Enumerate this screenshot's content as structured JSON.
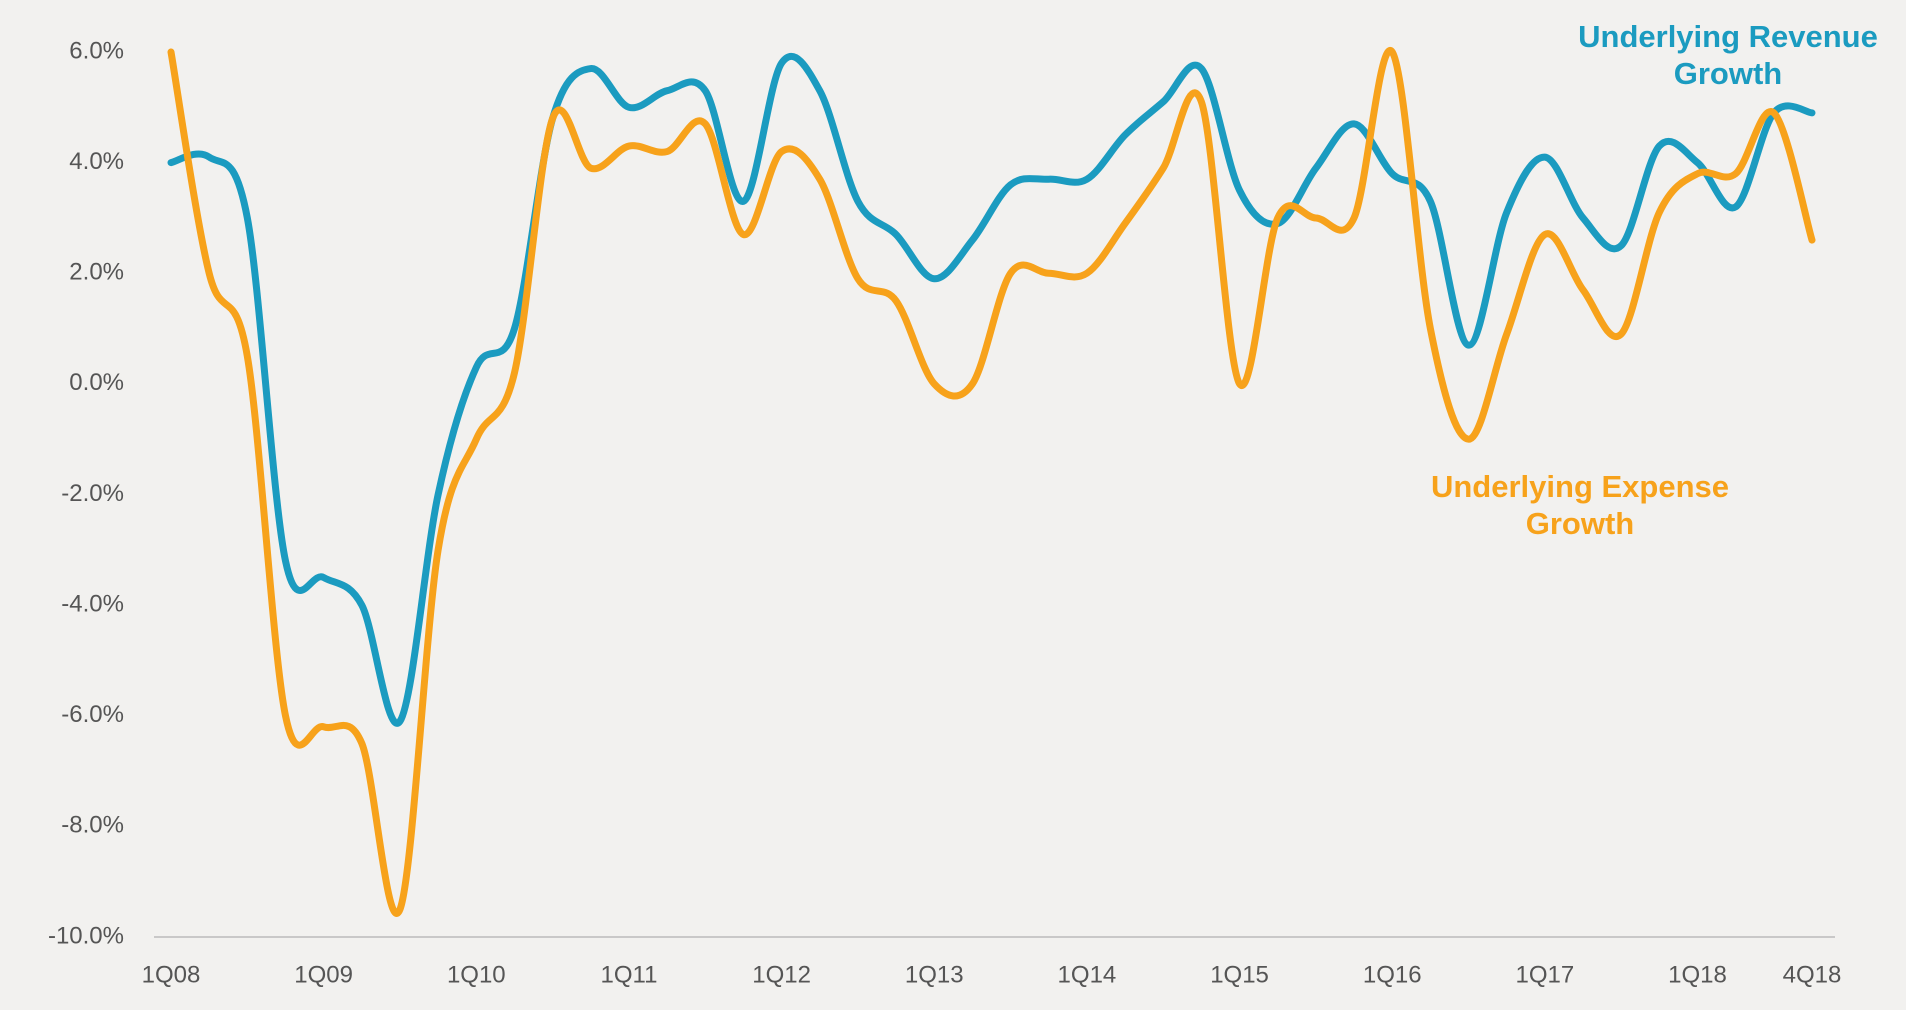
{
  "chart_data": {
    "type": "line",
    "categories": [
      "1Q08",
      null,
      null,
      null,
      "1Q09",
      null,
      null,
      null,
      "1Q10",
      null,
      null,
      null,
      "1Q11",
      null,
      null,
      null,
      "1Q12",
      null,
      null,
      null,
      "1Q13",
      null,
      null,
      null,
      "1Q14",
      null,
      null,
      null,
      "1Q15",
      null,
      null,
      null,
      "1Q16",
      null,
      null,
      null,
      "1Q17",
      null,
      null,
      null,
      "1Q18",
      null,
      null,
      "4Q18"
    ],
    "series": [
      {
        "name": "Underlying Revenue Growth",
        "color": "#1b9bc0",
        "values": [
          4.0,
          4.1,
          3.0,
          -3.2,
          -3.5,
          -4.0,
          -6.1,
          -2.0,
          0.3,
          1.0,
          4.8,
          5.7,
          5.0,
          5.3,
          5.3,
          3.3,
          5.8,
          5.3,
          3.3,
          2.7,
          1.9,
          2.6,
          3.6,
          3.7,
          3.7,
          4.5,
          5.1,
          5.7,
          3.5,
          2.9,
          3.9,
          4.7,
          3.8,
          3.3,
          0.7,
          3.1,
          4.1,
          3.0,
          2.5,
          4.3,
          4.0,
          3.2,
          4.9,
          4.9
        ]
      },
      {
        "name": "Underlying Expense Growth",
        "color": "#f7a21b",
        "values": [
          6.0,
          2.0,
          0.5,
          -6.0,
          -6.2,
          -6.5,
          -9.5,
          -3.0,
          -1.0,
          0.2,
          4.8,
          3.9,
          4.3,
          4.2,
          4.7,
          2.7,
          4.2,
          3.7,
          1.9,
          1.5,
          0.0,
          0.0,
          2.0,
          2.0,
          2.0,
          2.9,
          3.9,
          5.1,
          0.0,
          3.0,
          3.0,
          3.0,
          6.0,
          1.0,
          -1.0,
          0.9,
          2.7,
          1.7,
          0.9,
          3.1,
          3.8,
          3.8,
          4.9,
          2.6
        ]
      }
    ],
    "ylim": [
      -10,
      6
    ],
    "yticks": [
      {
        "value": -10,
        "label": "-10.0%"
      },
      {
        "value": -8,
        "label": "-8.0%"
      },
      {
        "value": -6,
        "label": "-6.0%"
      },
      {
        "value": -4,
        "label": "-4.0%"
      },
      {
        "value": -2,
        "label": "-2.0%"
      },
      {
        "value": 0,
        "label": "0.0%"
      },
      {
        "value": 2,
        "label": "2.0%"
      },
      {
        "value": 4,
        "label": "4.0%"
      },
      {
        "value": 6,
        "label": "6.0%"
      }
    ],
    "grid": false
  }
}
